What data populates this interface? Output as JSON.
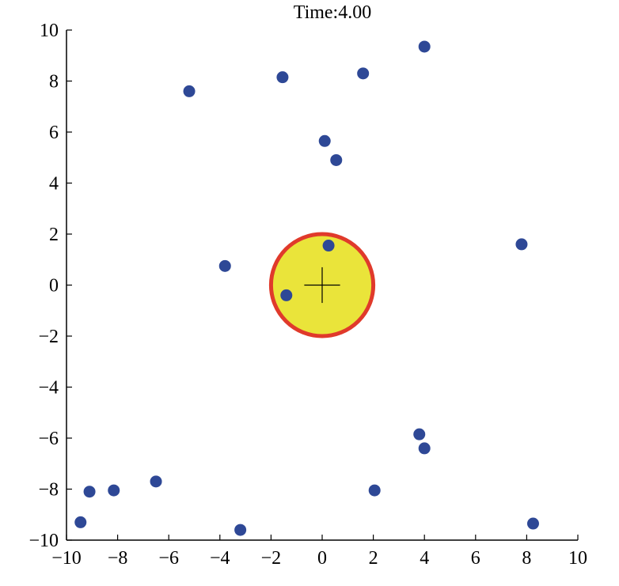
{
  "chart_data": {
    "type": "scatter",
    "title": "Time:4.00",
    "xlabel": "",
    "ylabel": "",
    "xlim": [
      -10,
      10
    ],
    "ylim": [
      -10,
      10
    ],
    "grid": false,
    "x_ticks": [
      -10,
      -8,
      -6,
      -4,
      -2,
      0,
      2,
      4,
      6,
      8,
      10
    ],
    "y_ticks": [
      -10,
      -8,
      -6,
      -4,
      -2,
      0,
      2,
      4,
      6,
      8,
      10
    ],
    "x_tick_labels": [
      "−10",
      "−8",
      "−6",
      "−4",
      "−2",
      "0",
      "2",
      "4",
      "6",
      "8",
      "10"
    ],
    "y_tick_labels": [
      "−10",
      "−8",
      "−6",
      "−4",
      "−2",
      "0",
      "2",
      "4",
      "6",
      "8",
      "10"
    ],
    "points": [
      {
        "x": 4.0,
        "y": 9.35
      },
      {
        "x": 1.6,
        "y": 8.3
      },
      {
        "x": -1.55,
        "y": 8.15
      },
      {
        "x": -5.2,
        "y": 7.6
      },
      {
        "x": 0.1,
        "y": 5.65
      },
      {
        "x": 0.55,
        "y": 4.9
      },
      {
        "x": 0.25,
        "y": 1.55
      },
      {
        "x": 7.8,
        "y": 1.6
      },
      {
        "x": -3.8,
        "y": 0.75
      },
      {
        "x": -1.4,
        "y": -0.4
      },
      {
        "x": 3.8,
        "y": -5.85
      },
      {
        "x": 4.0,
        "y": -6.4
      },
      {
        "x": 2.05,
        "y": -8.05
      },
      {
        "x": -6.5,
        "y": -7.7
      },
      {
        "x": -8.15,
        "y": -8.05
      },
      {
        "x": -9.1,
        "y": -8.1
      },
      {
        "x": -9.45,
        "y": -9.3
      },
      {
        "x": -3.2,
        "y": -9.6
      },
      {
        "x": 8.25,
        "y": -9.35
      }
    ],
    "target_circle": {
      "cx": 0,
      "cy": 0,
      "r": 2
    },
    "marker_cross": {
      "x": 0,
      "y": 0,
      "half_size": 0.7
    },
    "colors": {
      "point": "#2e4896",
      "circle_fill": "#eae43a",
      "circle_edge": "#e03a2b",
      "axis": "#000000",
      "cross": "#000000"
    }
  }
}
